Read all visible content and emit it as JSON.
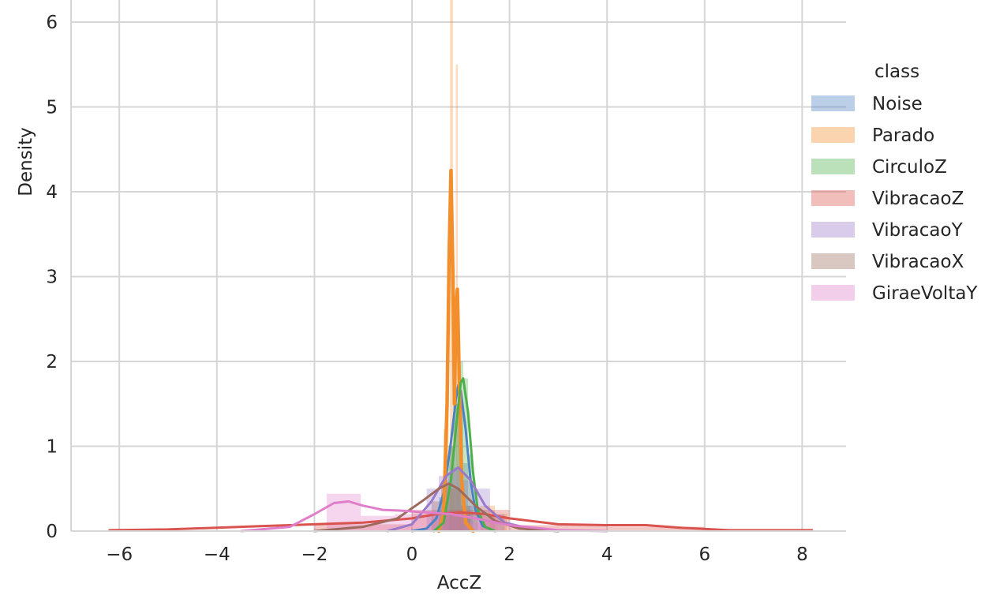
{
  "chart_data": {
    "type": "area",
    "title": "",
    "xlabel": "AccZ",
    "ylabel": "Density",
    "xlim": [
      -7.0,
      8.9
    ],
    "ylim": [
      0,
      6.25
    ],
    "x_ticks": [
      -6,
      -4,
      -2,
      0,
      2,
      4,
      6,
      8
    ],
    "y_ticks": [
      0,
      1,
      2,
      3,
      4,
      5,
      6
    ],
    "x_tick_labels": [
      "−6",
      "−4",
      "−2",
      "0",
      "2",
      "4",
      "6",
      "8"
    ],
    "y_tick_labels": [
      "0",
      "1",
      "2",
      "3",
      "4",
      "5",
      "6"
    ],
    "grid": true,
    "legend": {
      "title": "class",
      "placement": "right",
      "entries": [
        "Noise",
        "Parado",
        "CirculoZ",
        "VibracaoZ",
        "VibracaoY",
        "VibracaoX",
        "GiraeVoltaY"
      ]
    },
    "series": [
      {
        "name": "Noise",
        "color": "#4c82c4",
        "hist": [
          [
            0.55,
            0.65,
            0.4
          ],
          [
            0.65,
            0.75,
            0.6
          ],
          [
            0.75,
            0.85,
            1.0
          ],
          [
            0.85,
            0.95,
            1.5
          ],
          [
            0.95,
            1.05,
            1.45
          ],
          [
            1.05,
            1.15,
            0.8
          ],
          [
            1.15,
            1.25,
            0.3
          ]
        ],
        "kde": [
          [
            0.0,
            0.0
          ],
          [
            0.3,
            0.03
          ],
          [
            0.5,
            0.15
          ],
          [
            0.65,
            0.45
          ],
          [
            0.8,
            1.05
          ],
          [
            0.9,
            1.55
          ],
          [
            0.95,
            1.72
          ],
          [
            1.0,
            1.65
          ],
          [
            1.1,
            1.2
          ],
          [
            1.2,
            0.6
          ],
          [
            1.3,
            0.25
          ],
          [
            1.45,
            0.06
          ],
          [
            1.7,
            0.0
          ]
        ]
      },
      {
        "name": "Parado",
        "color": "#f28e2b",
        "hist": [
          [
            0.65,
            0.7,
            1.2
          ],
          [
            0.7,
            0.75,
            1.9
          ],
          [
            0.78,
            0.84,
            6.5
          ],
          [
            0.84,
            0.88,
            1.6
          ],
          [
            0.9,
            0.94,
            5.5
          ],
          [
            0.94,
            1.0,
            1.3
          ],
          [
            1.0,
            1.05,
            0.6
          ],
          [
            1.4,
            1.7,
            0.3
          ],
          [
            1.6,
            1.95,
            0.2
          ]
        ],
        "kde": [
          [
            0.55,
            0.0
          ],
          [
            0.65,
            0.2
          ],
          [
            0.72,
            1.5
          ],
          [
            0.76,
            3.2
          ],
          [
            0.8,
            4.25
          ],
          [
            0.84,
            3.0
          ],
          [
            0.87,
            1.5
          ],
          [
            0.9,
            2.6
          ],
          [
            0.93,
            2.85
          ],
          [
            0.97,
            1.8
          ],
          [
            1.02,
            0.6
          ],
          [
            1.1,
            0.1
          ],
          [
            1.25,
            0.0
          ]
        ]
      },
      {
        "name": "CirculoZ",
        "color": "#4daf4a",
        "hist": [
          [
            0.75,
            0.85,
            1.0
          ],
          [
            0.85,
            0.95,
            1.5
          ],
          [
            0.95,
            1.05,
            2.0
          ],
          [
            1.05,
            1.15,
            1.8
          ],
          [
            1.15,
            1.25,
            0.9
          ],
          [
            1.25,
            1.35,
            0.3
          ]
        ],
        "kde": [
          [
            0.45,
            0.0
          ],
          [
            0.65,
            0.1
          ],
          [
            0.8,
            0.6
          ],
          [
            0.9,
            1.2
          ],
          [
            1.0,
            1.75
          ],
          [
            1.05,
            1.8
          ],
          [
            1.15,
            1.4
          ],
          [
            1.25,
            0.7
          ],
          [
            1.35,
            0.25
          ],
          [
            1.5,
            0.05
          ],
          [
            1.7,
            0.0
          ]
        ]
      },
      {
        "name": "VibracaoZ",
        "color": "#d9534f",
        "hist": [
          [
            -2.0,
            0.0,
            0.08
          ],
          [
            0.0,
            2.0,
            0.25
          ],
          [
            2.0,
            4.0,
            0.07
          ],
          [
            4.0,
            6.0,
            0.05
          ]
        ],
        "kde": [
          [
            -6.2,
            0.01
          ],
          [
            -5.0,
            0.02
          ],
          [
            -4.0,
            0.04
          ],
          [
            -3.0,
            0.06
          ],
          [
            -2.0,
            0.08
          ],
          [
            -1.0,
            0.1
          ],
          [
            0.0,
            0.15
          ],
          [
            0.5,
            0.2
          ],
          [
            1.0,
            0.22
          ],
          [
            1.5,
            0.2
          ],
          [
            2.0,
            0.15
          ],
          [
            3.0,
            0.08
          ],
          [
            4.0,
            0.07
          ],
          [
            4.8,
            0.07
          ],
          [
            5.5,
            0.04
          ],
          [
            6.5,
            0.01
          ],
          [
            8.2,
            0.01
          ]
        ]
      },
      {
        "name": "VibracaoY",
        "color": "#9b79c9",
        "hist": [
          [
            0.3,
            0.55,
            0.5
          ],
          [
            0.55,
            0.8,
            0.65
          ],
          [
            0.8,
            1.05,
            0.75
          ],
          [
            1.05,
            1.3,
            0.6
          ],
          [
            1.3,
            1.6,
            0.5
          ],
          [
            1.6,
            1.9,
            0.2
          ]
        ],
        "kde": [
          [
            -0.5,
            0.0
          ],
          [
            0.0,
            0.08
          ],
          [
            0.4,
            0.35
          ],
          [
            0.7,
            0.65
          ],
          [
            0.95,
            0.75
          ],
          [
            1.2,
            0.6
          ],
          [
            1.5,
            0.3
          ],
          [
            1.9,
            0.1
          ],
          [
            2.5,
            0.02
          ],
          [
            3.0,
            0.0
          ]
        ]
      },
      {
        "name": "VibracaoX",
        "color": "#9c6b5e",
        "hist": [
          [
            0.4,
            0.6,
            0.35
          ],
          [
            0.6,
            0.8,
            0.55
          ],
          [
            0.8,
            1.0,
            0.5
          ],
          [
            1.0,
            1.2,
            0.3
          ]
        ],
        "kde": [
          [
            -2.0,
            0.0
          ],
          [
            -1.0,
            0.05
          ],
          [
            -0.3,
            0.15
          ],
          [
            0.2,
            0.35
          ],
          [
            0.55,
            0.5
          ],
          [
            0.75,
            0.56
          ],
          [
            0.95,
            0.5
          ],
          [
            1.3,
            0.3
          ],
          [
            1.7,
            0.12
          ],
          [
            2.2,
            0.03
          ],
          [
            3.0,
            0.0
          ]
        ]
      },
      {
        "name": "GiraeVoltaY",
        "color": "#e07fc9",
        "hist": [
          [
            -1.75,
            -1.05,
            0.44
          ],
          [
            -1.05,
            -0.35,
            0.18
          ],
          [
            -0.35,
            0.35,
            0.2
          ],
          [
            0.35,
            1.05,
            0.22
          ],
          [
            1.05,
            1.75,
            0.1
          ]
        ],
        "kde": [
          [
            -3.5,
            0.0
          ],
          [
            -2.5,
            0.05
          ],
          [
            -2.0,
            0.2
          ],
          [
            -1.6,
            0.33
          ],
          [
            -1.3,
            0.35
          ],
          [
            -1.0,
            0.3
          ],
          [
            -0.6,
            0.25
          ],
          [
            -0.2,
            0.24
          ],
          [
            0.3,
            0.22
          ],
          [
            0.8,
            0.2
          ],
          [
            1.3,
            0.15
          ],
          [
            2.0,
            0.07
          ],
          [
            3.0,
            0.01
          ],
          [
            4.0,
            0.0
          ]
        ]
      }
    ]
  }
}
